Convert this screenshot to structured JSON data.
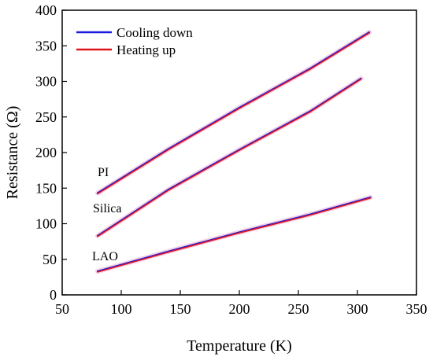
{
  "chart_data": {
    "type": "line",
    "xlabel": "Temperature (K)",
    "ylabel": "Resistance (Ω)",
    "xlim": [
      50,
      350
    ],
    "ylim": [
      0,
      400
    ],
    "xticks": [
      50,
      100,
      150,
      200,
      250,
      300,
      350
    ],
    "yticks": [
      0,
      50,
      100,
      150,
      200,
      250,
      300,
      350,
      400
    ],
    "grid": false,
    "legend_position": "top-left",
    "series": [
      {
        "name": "Cooling down",
        "color": "#1a1adf"
      },
      {
        "name": "Heating up",
        "color": "#e0141e"
      }
    ],
    "curves": [
      {
        "label": "PI",
        "x": [
          80,
          140,
          200,
          260,
          310
        ],
        "y": [
          143,
          205,
          263,
          318,
          369
        ]
      },
      {
        "label": "Silica",
        "x": [
          80,
          140,
          200,
          260,
          303
        ],
        "y": [
          83,
          148,
          204,
          258,
          304
        ]
      },
      {
        "label": "LAO",
        "x": [
          80,
          140,
          200,
          260,
          311
        ],
        "y": [
          33,
          61,
          88,
          113,
          137
        ]
      }
    ]
  }
}
